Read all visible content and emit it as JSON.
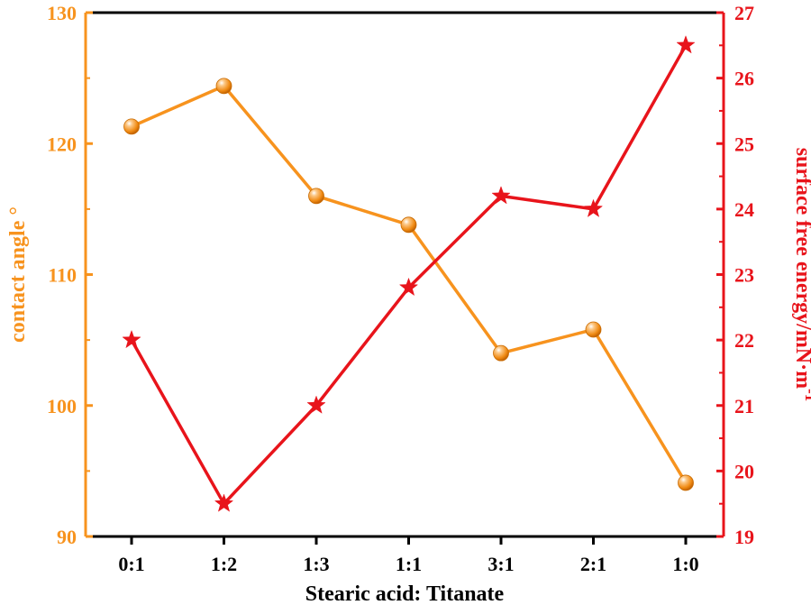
{
  "chart_data": {
    "type": "line",
    "xlabel": "Stearic acid: Titanate",
    "categories": [
      "0:1",
      "1:2",
      "1:3",
      "1:1",
      "3:1",
      "2:1",
      "1:0"
    ],
    "y_left": {
      "label": "contact angle °",
      "ylim": [
        90,
        130
      ],
      "ticks": [
        "90",
        "100",
        "110",
        "120",
        "130"
      ],
      "color": "#f7931e"
    },
    "y_right": {
      "label_main": "surface free energy/mN·m",
      "label_sup": "-1",
      "ylim": [
        19,
        27
      ],
      "ticks": [
        "19",
        "20",
        "21",
        "22",
        "23",
        "24",
        "25",
        "26",
        "27"
      ],
      "color": "#e8141b"
    },
    "series": [
      {
        "name": "contact angle",
        "axis": "left",
        "marker": "sphere",
        "color": "#f7931e",
        "values": [
          121.3,
          124.4,
          116.0,
          113.8,
          104.0,
          105.8,
          94.1
        ]
      },
      {
        "name": "surface free energy",
        "axis": "right",
        "marker": "star",
        "color": "#e8141b",
        "values": [
          22.0,
          19.5,
          21.0,
          22.8,
          24.2,
          24.0,
          26.5
        ]
      }
    ]
  }
}
